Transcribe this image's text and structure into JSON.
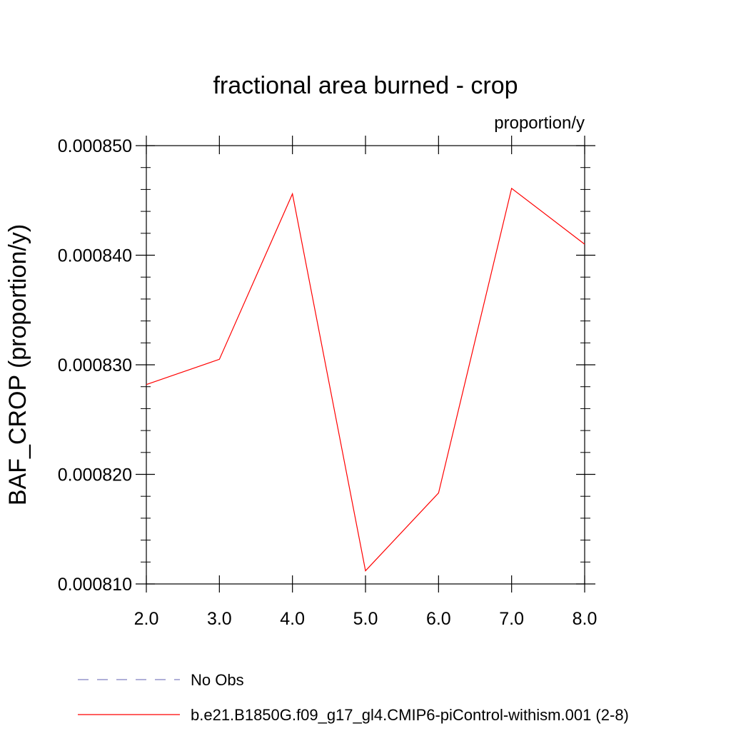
{
  "chart_data": {
    "type": "line",
    "title": "fractional area burned - crop",
    "units": "proportion/y",
    "xlabel": "",
    "ylabel": "BAF_CROP  (proportion/y)",
    "xlim": [
      2.0,
      8.0
    ],
    "ylim": [
      0.00081,
      0.00085
    ],
    "xticks": [
      "2.0",
      "3.0",
      "4.0",
      "5.0",
      "6.0",
      "7.0",
      "8.0"
    ],
    "yticks": [
      "0.000810",
      "0.000820",
      "0.000830",
      "0.000840",
      "0.000850"
    ],
    "grid": false,
    "legend_position": "bottom",
    "series": [
      {
        "name": "b.e21.B1850G.f09_g17_gl4.CMIP6-piControl-withism.001 (2-8)",
        "color": "#ff0000",
        "style": "solid",
        "x": [
          2,
          3,
          4,
          5,
          6,
          7,
          8
        ],
        "values": [
          0.0008282,
          0.0008305,
          0.0008456,
          0.0008112,
          0.0008183,
          0.0008461,
          0.000841
        ]
      }
    ],
    "legend": [
      {
        "label": "No Obs",
        "color": "#8080c0",
        "style": "dashed"
      },
      {
        "label": "b.e21.B1850G.f09_g17_gl4.CMIP6-piControl-withism.001 (2-8)",
        "color": "#ff0000",
        "style": "solid"
      }
    ]
  }
}
